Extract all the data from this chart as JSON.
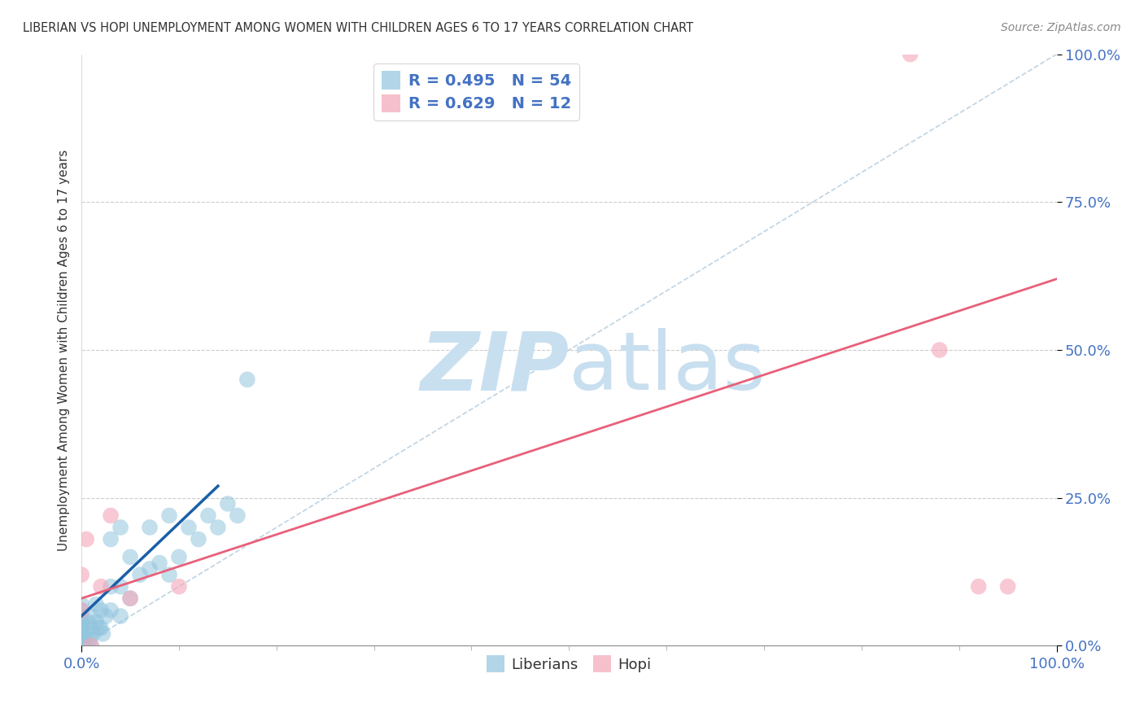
{
  "title": "LIBERIAN VS HOPI UNEMPLOYMENT AMONG WOMEN WITH CHILDREN AGES 6 TO 17 YEARS CORRELATION CHART",
  "source": "Source: ZipAtlas.com",
  "ylabel": "Unemployment Among Women with Children Ages 6 to 17 years",
  "xlim": [
    0,
    1
  ],
  "ylim": [
    0,
    1
  ],
  "xtick_positions": [
    0,
    1.0
  ],
  "xtick_labels": [
    "0.0%",
    "100.0%"
  ],
  "ytick_positions": [
    0,
    0.25,
    0.5,
    0.75,
    1.0
  ],
  "ytick_labels": [
    "0.0%",
    "25.0%",
    "50.0%",
    "75.0%",
    "100.0%"
  ],
  "liberian_R": 0.495,
  "liberian_N": 54,
  "hopi_R": 0.629,
  "hopi_N": 12,
  "liberian_color": "#92c5de",
  "hopi_color": "#f4a6b8",
  "liberian_line_color": "#1a5fa8",
  "hopi_line_color": "#e8607a",
  "diag_color": "#b8cfe0",
  "watermark_zip_color": "#c8dff0",
  "watermark_atlas_color": "#c8dff0",
  "background_color": "#ffffff",
  "liberian_x": [
    0.0,
    0.0,
    0.0,
    0.0,
    0.0,
    0.0,
    0.0,
    0.0,
    0.0,
    0.0,
    0.0,
    0.0,
    0.0,
    0.0,
    0.0,
    0.0,
    0.0,
    0.005,
    0.005,
    0.007,
    0.008,
    0.01,
    0.01,
    0.01,
    0.012,
    0.015,
    0.015,
    0.018,
    0.02,
    0.02,
    0.022,
    0.025,
    0.03,
    0.03,
    0.03,
    0.04,
    0.04,
    0.04,
    0.05,
    0.05,
    0.06,
    0.07,
    0.07,
    0.08,
    0.09,
    0.09,
    0.1,
    0.11,
    0.12,
    0.13,
    0.14,
    0.15,
    0.16,
    0.17
  ],
  "liberian_y": [
    0.0,
    0.0,
    0.0,
    0.0,
    0.0,
    0.0,
    0.0,
    0.01,
    0.01,
    0.02,
    0.02,
    0.03,
    0.03,
    0.04,
    0.05,
    0.06,
    0.07,
    0.0,
    0.02,
    0.04,
    0.01,
    0.0,
    0.03,
    0.05,
    0.02,
    0.04,
    0.07,
    0.03,
    0.03,
    0.06,
    0.02,
    0.05,
    0.06,
    0.1,
    0.18,
    0.05,
    0.1,
    0.2,
    0.08,
    0.15,
    0.12,
    0.13,
    0.2,
    0.14,
    0.12,
    0.22,
    0.15,
    0.2,
    0.18,
    0.22,
    0.2,
    0.24,
    0.22,
    0.45
  ],
  "hopi_x": [
    0.0,
    0.0,
    0.005,
    0.01,
    0.02,
    0.03,
    0.05,
    0.1,
    0.85,
    0.88,
    0.92,
    0.95
  ],
  "hopi_y": [
    0.06,
    0.12,
    0.18,
    0.0,
    0.1,
    0.22,
    0.08,
    0.1,
    1.0,
    0.5,
    0.1,
    0.1
  ],
  "liberian_reg": [
    0.0,
    0.14,
    0.05,
    0.27
  ],
  "hopi_reg": [
    0.0,
    1.0,
    0.08,
    0.62
  ]
}
